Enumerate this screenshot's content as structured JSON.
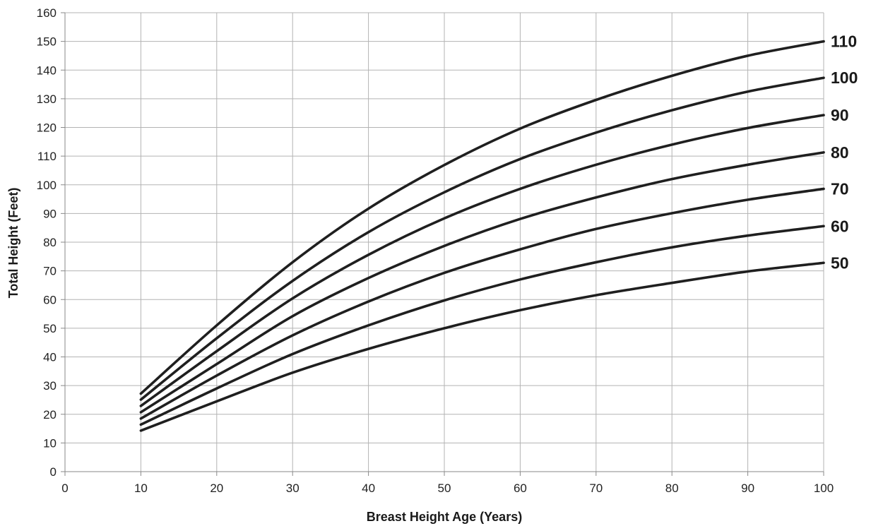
{
  "chart_data": {
    "type": "line",
    "title": "",
    "xlabel": "Breast Height Age (Years)",
    "ylabel": "Total Height (Feet)",
    "xlim": [
      0,
      100
    ],
    "ylim": [
      0,
      160
    ],
    "xticks": [
      0,
      10,
      20,
      30,
      40,
      50,
      60,
      70,
      80,
      90,
      100
    ],
    "yticks": [
      0,
      10,
      20,
      30,
      40,
      50,
      60,
      70,
      80,
      90,
      100,
      110,
      120,
      130,
      140,
      150,
      160
    ],
    "grid": true,
    "line_color": "#1f1f1f",
    "x": [
      10,
      20,
      30,
      40,
      50,
      60,
      70,
      80,
      90,
      100
    ],
    "series": [
      {
        "name": "50",
        "values": [
          14.3,
          24.5,
          34.5,
          42.8,
          50.0,
          56.3,
          61.5,
          65.8,
          69.8,
          72.8
        ]
      },
      {
        "name": "60",
        "values": [
          16.4,
          29.0,
          41.0,
          51.0,
          59.7,
          67.0,
          73.0,
          78.2,
          82.3,
          85.6
        ]
      },
      {
        "name": "70",
        "values": [
          18.5,
          33.5,
          47.5,
          59.3,
          69.3,
          77.5,
          84.6,
          90.1,
          94.8,
          98.6
        ]
      },
      {
        "name": "80",
        "values": [
          20.7,
          37.5,
          54.2,
          67.5,
          78.7,
          88.1,
          95.6,
          102.0,
          107.0,
          111.3
        ]
      },
      {
        "name": "90",
        "values": [
          22.9,
          42.0,
          60.4,
          75.6,
          88.3,
          98.6,
          107.0,
          114.0,
          119.8,
          124.3
        ]
      },
      {
        "name": "100",
        "values": [
          25.1,
          46.5,
          66.5,
          83.5,
          97.4,
          109.0,
          118.2,
          126.0,
          132.5,
          137.3
        ]
      },
      {
        "name": "110",
        "values": [
          27.2,
          51.0,
          73.0,
          91.7,
          106.9,
          119.6,
          129.6,
          138.0,
          145.0,
          150.0
        ]
      }
    ]
  }
}
